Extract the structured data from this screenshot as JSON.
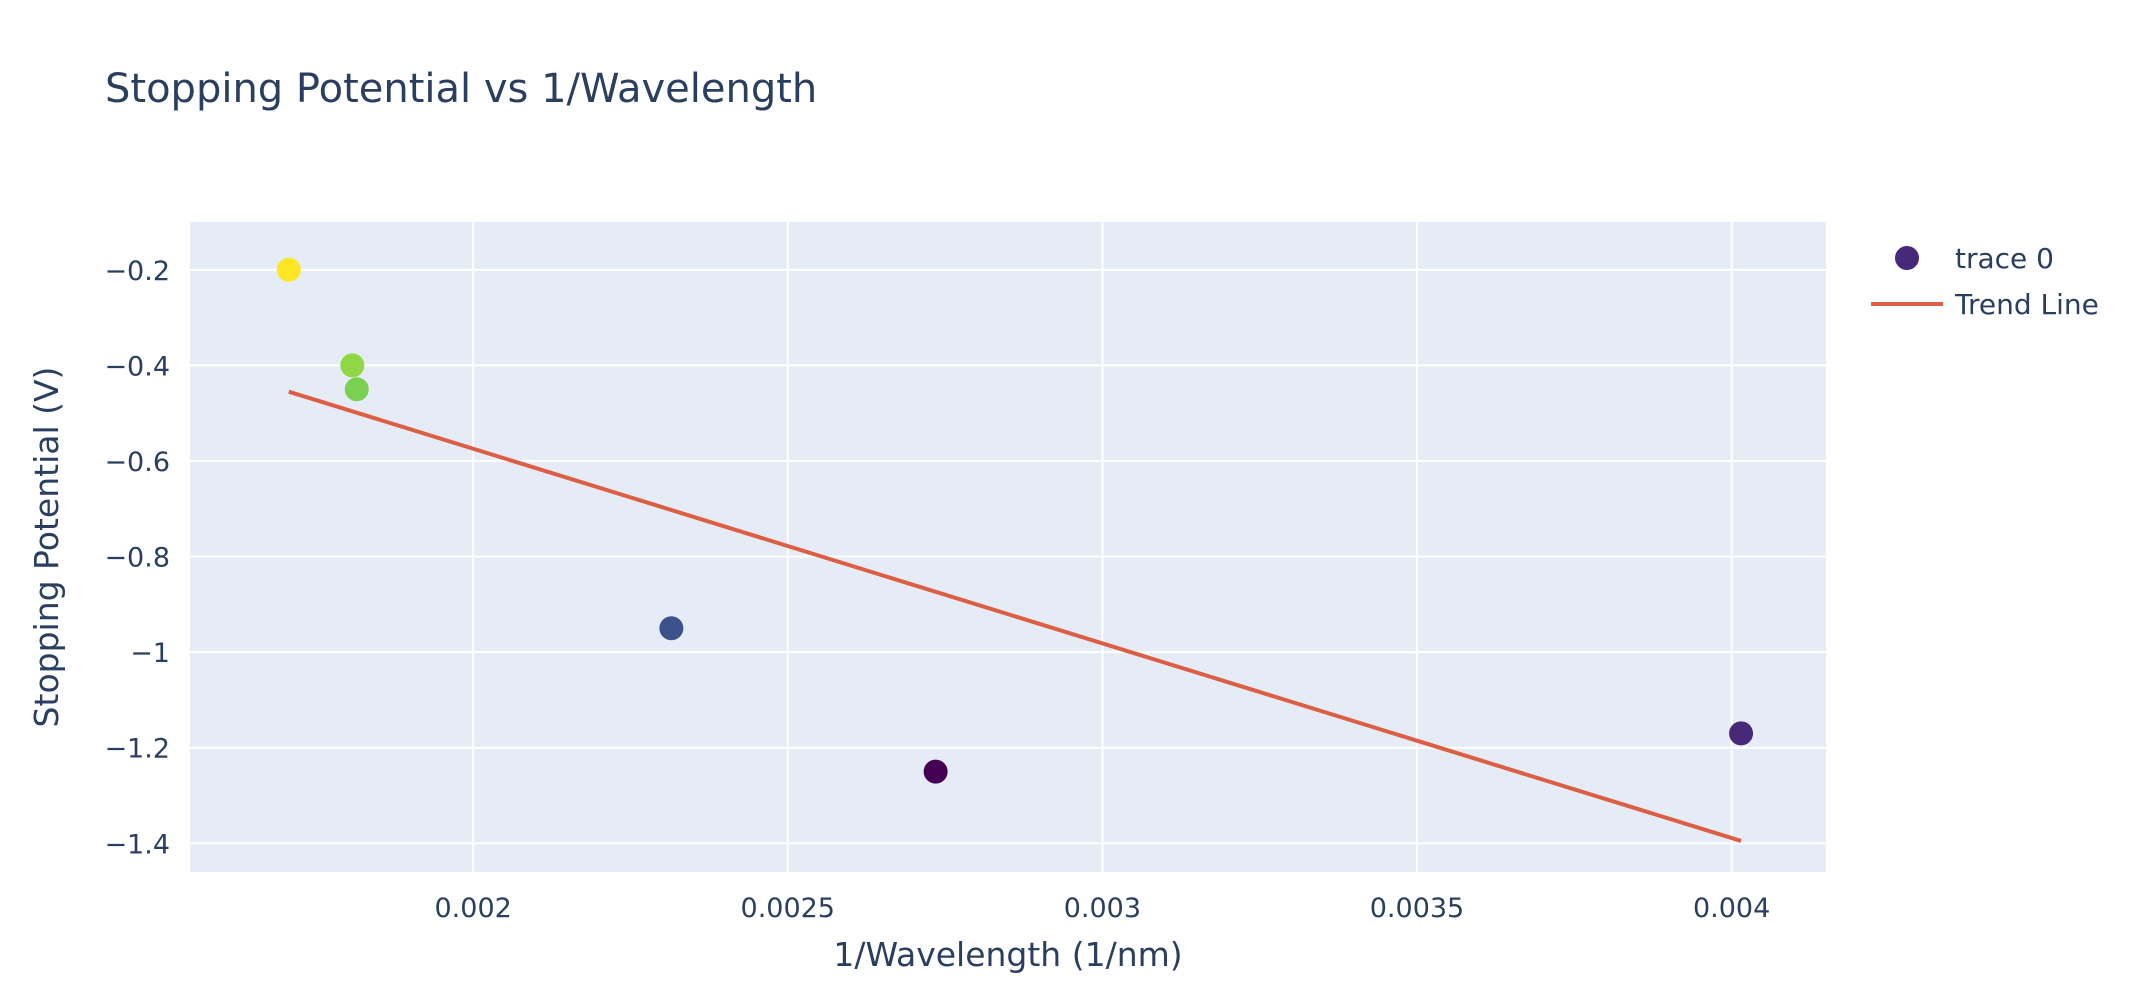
{
  "chart_data": {
    "type": "scatter",
    "title": "Stopping Potential vs 1/Wavelength",
    "xlabel": "1/Wavelength (1/nm)",
    "ylabel": "Stopping Potential (V)",
    "xlim": [
      0.00155,
      0.00415
    ],
    "ylim": [
      -1.46,
      -0.1
    ],
    "x_ticks": [
      0.002,
      0.0025,
      0.003,
      0.0035,
      0.004
    ],
    "x_tick_labels": [
      "0.002",
      "0.0025",
      "0.003",
      "0.0035",
      "0.004"
    ],
    "y_ticks": [
      -0.2,
      -0.4,
      -0.6,
      -0.8,
      -1,
      -1.2,
      -1.4
    ],
    "y_tick_labels": [
      "−0.2",
      "−0.4",
      "−0.6",
      "−0.8",
      "−1",
      "−1.2",
      "−1.4"
    ],
    "grid": true,
    "legend_position": "top-right",
    "plot_background": "#e5ecf6",
    "series": [
      {
        "name": "trace 0",
        "mode": "markers",
        "legend_color": "#482878",
        "points": [
          {
            "x": 0.001707,
            "y": -0.2,
            "color": "#fde725"
          },
          {
            "x": 0.001808,
            "y": -0.4,
            "color": "#8fd744"
          },
          {
            "x": 0.001815,
            "y": -0.45,
            "color": "#7ad151"
          },
          {
            "x": 0.002315,
            "y": -0.95,
            "color": "#3b528b"
          },
          {
            "x": 0.002735,
            "y": -1.25,
            "color": "#440154"
          },
          {
            "x": 0.004015,
            "y": -1.17,
            "color": "#482878"
          }
        ]
      },
      {
        "name": "Trend Line",
        "mode": "lines",
        "color": "#dc5f45",
        "x": [
          0.001707,
          0.004015
        ],
        "y": [
          -0.455,
          -1.395
        ]
      }
    ]
  }
}
